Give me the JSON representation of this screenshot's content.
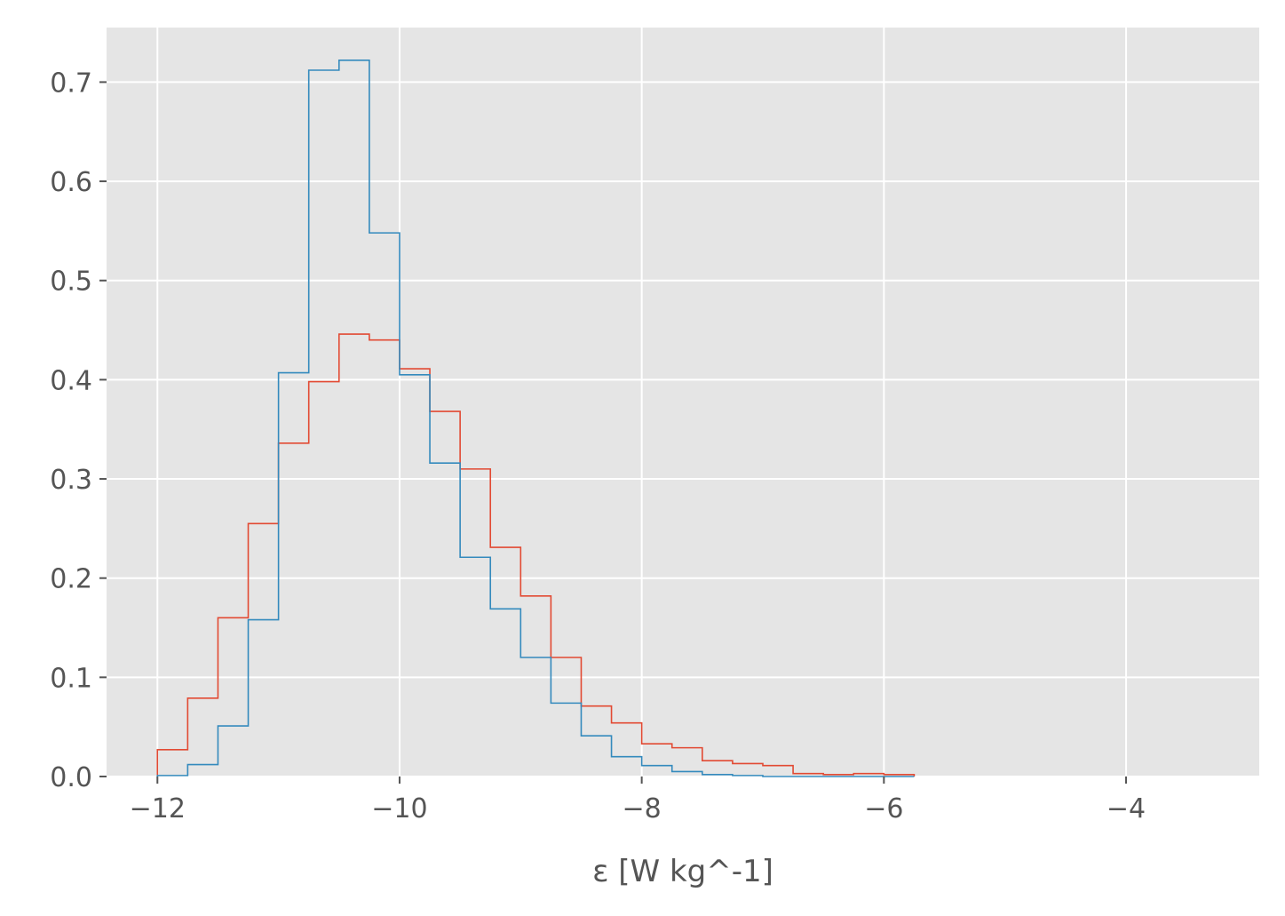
{
  "chart_data": {
    "type": "histogram",
    "xlabel": "ε [W kg^-1]",
    "ylabel": "",
    "xlim": [
      -12.42,
      -2.9
    ],
    "ylim": [
      0.0,
      0.755
    ],
    "grid": true,
    "background_color": "#e5e5e5",
    "grid_color": "#ffffff",
    "x_ticks": [
      -12,
      -10,
      -8,
      -6,
      -4
    ],
    "x_tick_labels": [
      "−12",
      "−10",
      "−8",
      "−6",
      "−4"
    ],
    "y_ticks": [
      0.0,
      0.1,
      0.2,
      0.3,
      0.4,
      0.5,
      0.6,
      0.7
    ],
    "y_tick_labels": [
      "0.0",
      "0.1",
      "0.2",
      "0.3",
      "0.4",
      "0.5",
      "0.6",
      "0.7"
    ],
    "bin_edges": [
      -12.0,
      -11.75,
      -11.5,
      -11.25,
      -11.0,
      -10.75,
      -10.5,
      -10.25,
      -10.0,
      -9.75,
      -9.5,
      -9.25,
      -9.0,
      -8.75,
      -8.5,
      -8.25,
      -8.0,
      -7.75,
      -7.5,
      -7.25,
      -7.0,
      -6.75,
      -6.5,
      -6.25,
      -6.0,
      -5.75
    ],
    "series": [
      {
        "color": "#e24a33",
        "values": [
          0.027,
          0.079,
          0.16,
          0.255,
          0.336,
          0.398,
          0.446,
          0.44,
          0.411,
          0.368,
          0.31,
          0.231,
          0.182,
          0.12,
          0.071,
          0.054,
          0.033,
          0.029,
          0.016,
          0.013,
          0.011,
          0.003,
          0.002,
          0.003,
          0.002
        ]
      },
      {
        "color": "#348abd",
        "values": [
          0.001,
          0.012,
          0.051,
          0.158,
          0.407,
          0.712,
          0.722,
          0.548,
          0.405,
          0.316,
          0.221,
          0.169,
          0.12,
          0.074,
          0.041,
          0.02,
          0.011,
          0.005,
          0.002,
          0.001,
          0.0,
          0.0,
          0.0,
          0.0,
          0.0
        ]
      }
    ]
  }
}
